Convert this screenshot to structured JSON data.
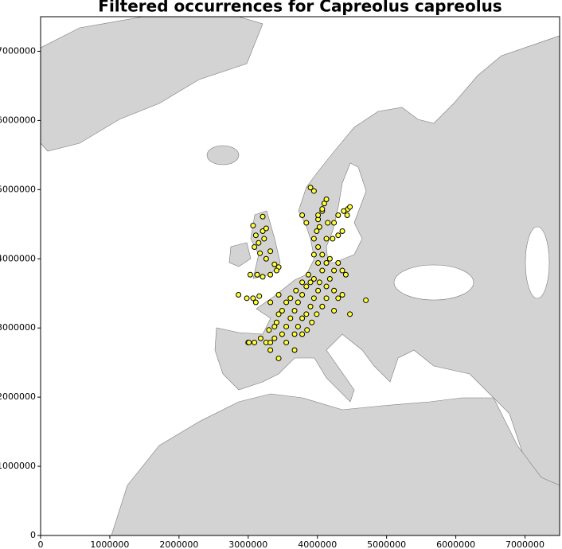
{
  "chart_data": {
    "type": "scatter",
    "title": "Filtered occurrences for Capreolus capreolus",
    "color": "#ffff3a",
    "edgecolor": "#000000",
    "xlim": [
      0,
      7500000
    ],
    "ylim": [
      0,
      7500000
    ],
    "xticks": [
      0,
      1000000,
      2000000,
      3000000,
      4000000,
      5000000,
      6000000,
      7000000
    ],
    "yticks": [
      0,
      1000000,
      2000000,
      3000000,
      4000000,
      5000000,
      6000000,
      7000000
    ],
    "x": [
      3070000,
      3110000,
      3150000,
      3210000,
      3260000,
      3210000,
      3090000,
      3170000,
      3260000,
      3320000,
      3230000,
      3380000,
      3440000,
      3410000,
      3130000,
      3210000,
      3320000,
      3030000,
      3160000,
      3070000,
      3320000,
      3440000,
      3550000,
      3440000,
      3380000,
      3490000,
      3550000,
      3320000,
      3260000,
      3440000,
      3380000,
      3610000,
      3670000,
      3720000,
      3780000,
      3840000,
      3900000,
      3720000,
      3780000,
      3670000,
      3550000,
      3840000,
      3900000,
      3950000,
      4010000,
      3950000,
      3870000,
      3780000,
      3690000,
      3610000,
      3490000,
      3410000,
      3300000,
      3180000,
      3090000,
      3000000,
      2860000,
      2980000,
      3110000,
      3670000,
      3780000,
      3850000,
      3920000,
      3990000,
      4070000,
      4130000,
      4030000,
      4130000,
      4180000,
      4240000,
      3950000,
      4010000,
      4070000,
      3950000,
      4010000,
      4130000,
      4070000,
      4180000,
      4240000,
      4300000,
      3990000,
      4030000,
      4130000,
      4010000,
      3900000,
      3950000,
      4010000,
      4070000,
      4100000,
      4070000,
      4130000,
      4150000,
      3840000,
      3780000,
      4240000,
      4220000,
      4300000,
      4360000,
      4380000,
      4440000,
      4470000,
      4430000,
      4300000,
      4360000,
      4410000,
      4360000,
      4470000,
      4700000,
      4300000,
      4240000,
      3010000,
      3320000
    ],
    "y": [
      4480000,
      4340000,
      4230000,
      4400000,
      4440000,
      4610000,
      4170000,
      4080000,
      4000000,
      4110000,
      4290000,
      3920000,
      3880000,
      3830000,
      3770000,
      3740000,
      3770000,
      3770000,
      3460000,
      3430000,
      3370000,
      3480000,
      3370000,
      3200000,
      3020000,
      2910000,
      2790000,
      2680000,
      2790000,
      2560000,
      2850000,
      3140000,
      3250000,
      3370000,
      3480000,
      3600000,
      3660000,
      3020000,
      3140000,
      2910000,
      3020000,
      3200000,
      3310000,
      3430000,
      3540000,
      3710000,
      3770000,
      3660000,
      3540000,
      3430000,
      3250000,
      3080000,
      2970000,
      2850000,
      2790000,
      2790000,
      3480000,
      3430000,
      3370000,
      2680000,
      2910000,
      2970000,
      3080000,
      3200000,
      3310000,
      3430000,
      3660000,
      3600000,
      3710000,
      3540000,
      4290000,
      4170000,
      4060000,
      4060000,
      3940000,
      3940000,
      3830000,
      4000000,
      3830000,
      3940000,
      4400000,
      4460000,
      4290000,
      4570000,
      5030000,
      4980000,
      4630000,
      4690000,
      4800000,
      4720000,
      4860000,
      4520000,
      4520000,
      4630000,
      4520000,
      4290000,
      4340000,
      4400000,
      4690000,
      4720000,
      4750000,
      4630000,
      4630000,
      3830000,
      3770000,
      3480000,
      3200000,
      3400000,
      3430000,
      3250000,
      2790000,
      2790000
    ]
  }
}
